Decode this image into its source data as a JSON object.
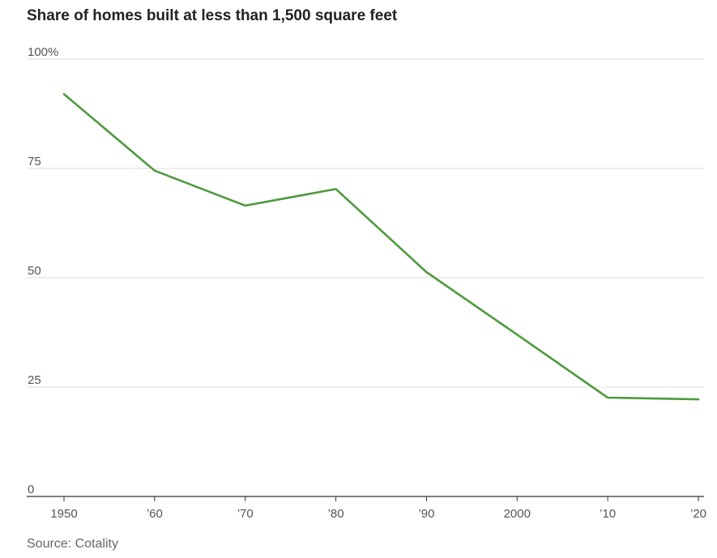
{
  "chart_data": {
    "type": "line",
    "title": "Share of homes built at less than 1,500 square feet",
    "source": "Source: Cotality",
    "xlabel": "",
    "ylabel": "",
    "x": [
      1950,
      1960,
      1970,
      1980,
      1990,
      2000,
      2010,
      2020
    ],
    "x_tick_labels": [
      "1950",
      "’60",
      "’70",
      "’80",
      "’90",
      "2000",
      "’10",
      "’20"
    ],
    "y_ticks": [
      0,
      25,
      50,
      75,
      100
    ],
    "y_tick_labels": [
      "0",
      "25",
      "50",
      "75",
      "100%"
    ],
    "ylim": [
      0,
      100
    ],
    "grid": true,
    "series": [
      {
        "values": [
          92,
          74.5,
          66.5,
          70.3,
          51.3,
          37,
          22.6,
          22.2
        ],
        "color": "#4f9a3f"
      }
    ]
  }
}
